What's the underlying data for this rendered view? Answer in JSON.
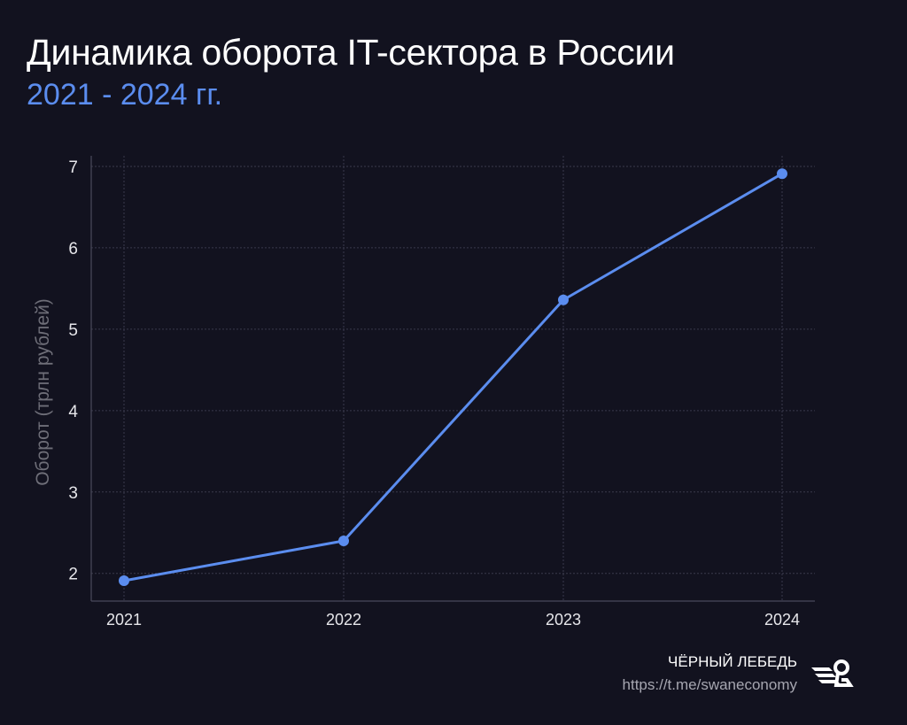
{
  "title": "Динамика оборота IT-сектора в России",
  "subtitle": "2021 - 2024 гг.",
  "chart_data": {
    "type": "line",
    "categories": [
      "2021",
      "2022",
      "2023",
      "2024"
    ],
    "series": [
      {
        "values": [
          1.91,
          2.4,
          5.36,
          6.91
        ]
      }
    ],
    "xlabel": "",
    "ylabel": "Оборот (трлн рублей)",
    "ylim": [
      1.66,
      7.13
    ],
    "yticks": [
      2,
      3,
      4,
      5,
      6,
      7
    ],
    "grid": true,
    "colors": {
      "line": "#5b8def",
      "background": "#12121f"
    }
  },
  "footer": {
    "brand": "ЧЁРНЫЙ ЛЕБЕДЬ",
    "url": "https://t.me/swaneconomy",
    "logo_icon": "swan-logo-icon"
  }
}
